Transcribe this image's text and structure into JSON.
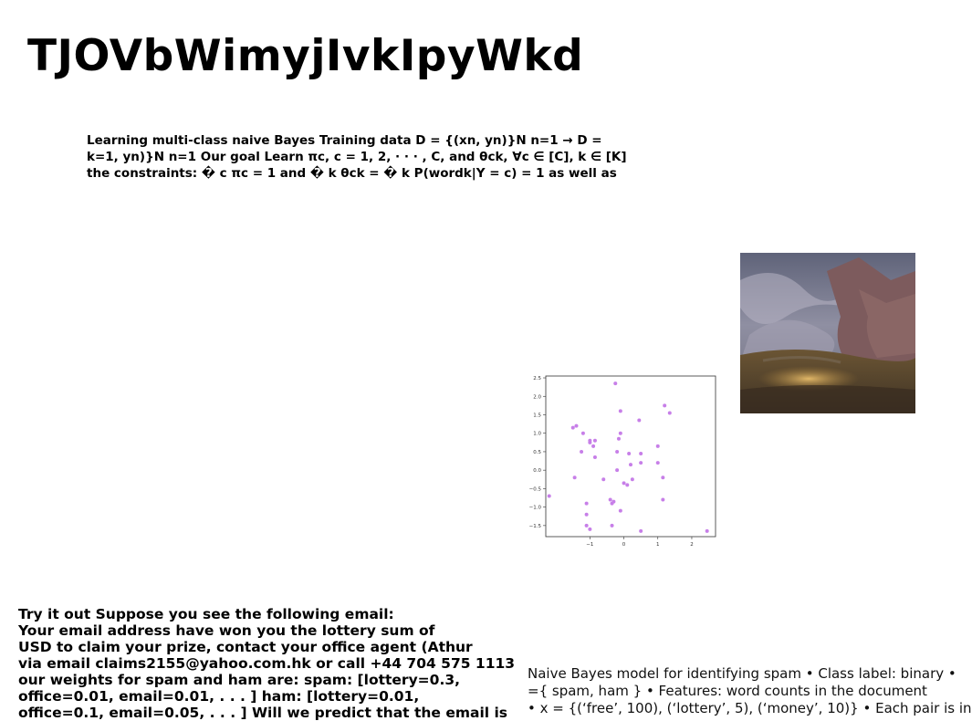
{
  "title": "TJOVbWimyjIvkIpyWkd",
  "bayes_text": {
    "lines": [
      "Learning multi-class naive Bayes Training data D = {(xn, yn)}N n=1 → D =",
      "k=1, yn)}N n=1 Our goal Learn πc, c = 1, 2, · · · , C, and θck, ∀c ∈ [C], k ∈ [K]",
      "the constraints: � c πc = 1 and � k θck = � k P(wordk|Y = c) = 1 as well as"
    ]
  },
  "painting": {
    "icon": "landscape-painting",
    "colors": {
      "sky": "#6f6f86",
      "cliff": "#7e5b5a",
      "ground": "#4f3f2e",
      "glow": "#c69a4f"
    }
  },
  "chart_data": {
    "type": "scatter",
    "title": "",
    "xlabel": "",
    "ylabel": "",
    "xlim": [
      -2.3,
      2.7
    ],
    "ylim": [
      -1.8,
      2.55
    ],
    "x_ticks": [
      -1,
      0,
      1,
      2
    ],
    "y_ticks": [
      -1.5,
      -1.0,
      -0.5,
      0.0,
      0.5,
      1.0,
      1.5,
      2.0,
      2.5
    ],
    "x_tick_labels": [
      "−1",
      "0",
      "1",
      "2"
    ],
    "y_tick_labels": [
      "−1.5",
      "−1.0",
      "−0.5",
      "0.0",
      "0.5",
      "1.0",
      "1.5",
      "2.0",
      "2.5"
    ],
    "point_color": "#c77fe8",
    "points": [
      [
        -2.2,
        -0.7
      ],
      [
        -1.5,
        1.15
      ],
      [
        -1.4,
        1.2
      ],
      [
        -1.2,
        1.0
      ],
      [
        -1.25,
        0.5
      ],
      [
        -1.1,
        -0.9
      ],
      [
        -1.1,
        -1.2
      ],
      [
        -1.1,
        -1.5
      ],
      [
        -1.0,
        0.8
      ],
      [
        -1.0,
        0.75
      ],
      [
        -0.9,
        0.65
      ],
      [
        -0.85,
        0.35
      ],
      [
        -0.85,
        0.8
      ],
      [
        -1.0,
        -1.6
      ],
      [
        -0.6,
        -0.25
      ],
      [
        -1.45,
        -0.2
      ],
      [
        -0.4,
        -0.8
      ],
      [
        -0.35,
        -0.9
      ],
      [
        -0.3,
        -0.85
      ],
      [
        -0.35,
        -1.5
      ],
      [
        -0.2,
        0.5
      ],
      [
        -0.2,
        0.0
      ],
      [
        -0.1,
        1.6
      ],
      [
        -0.15,
        0.85
      ],
      [
        -0.1,
        1.0
      ],
      [
        -0.25,
        2.35
      ],
      [
        0.0,
        -0.35
      ],
      [
        0.1,
        -0.4
      ],
      [
        -0.1,
        -1.1
      ],
      [
        0.15,
        0.45
      ],
      [
        0.2,
        0.15
      ],
      [
        0.25,
        -0.25
      ],
      [
        0.45,
        1.35
      ],
      [
        0.5,
        0.45
      ],
      [
        0.5,
        0.2
      ],
      [
        0.5,
        -1.65
      ],
      [
        1.0,
        0.65
      ],
      [
        1.0,
        0.2
      ],
      [
        1.15,
        -0.2
      ],
      [
        1.15,
        -0.8
      ],
      [
        1.2,
        1.75
      ],
      [
        1.35,
        1.55
      ],
      [
        2.45,
        -1.65
      ]
    ]
  },
  "email_text": {
    "lines": [
      "Try it out Suppose you see the following email:",
      "Your email address have won you the lottery sum of",
      "USD to claim your prize, contact your office agent (Athur",
      "via email claims2155@yahoo.com.hk or call +44 704 575 1113",
      "our weights for spam and ham are: spam: [lottery=0.3,",
      "office=0.01, email=0.01, . . . ] ham: [lottery=0.01,",
      "office=0.1, email=0.05, . . . ] Will we predict that the email is"
    ]
  },
  "nb_text": {
    "lines": [
      "Naive Bayes model for identifying spam • Class label: binary •",
      "={ spam, ham } • Features: word counts in the document",
      "• x = {(‘free’, 100), (‘lottery’, 5), (‘money’, 10)} • Each pair is in"
    ]
  }
}
